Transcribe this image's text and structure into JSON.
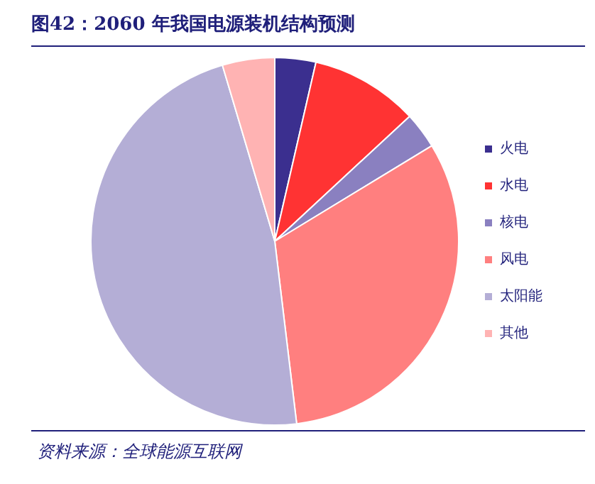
{
  "chart_data": {
    "type": "pie",
    "title": "图42：2060 年我国电源装机结构预测",
    "categories": [
      "火电",
      "水电",
      "核电",
      "风电",
      "太阳能",
      "其他"
    ],
    "values": [
      3.6,
      9.5,
      3.2,
      31.8,
      47.3,
      4.6
    ],
    "colors": [
      "#3b2f8f",
      "#ff3333",
      "#8a80c0",
      "#ff7f7f",
      "#b4aed6",
      "#ffb3b3"
    ],
    "legend": "right",
    "annotations": [
      "资料来源：全球能源互联网"
    ]
  }
}
